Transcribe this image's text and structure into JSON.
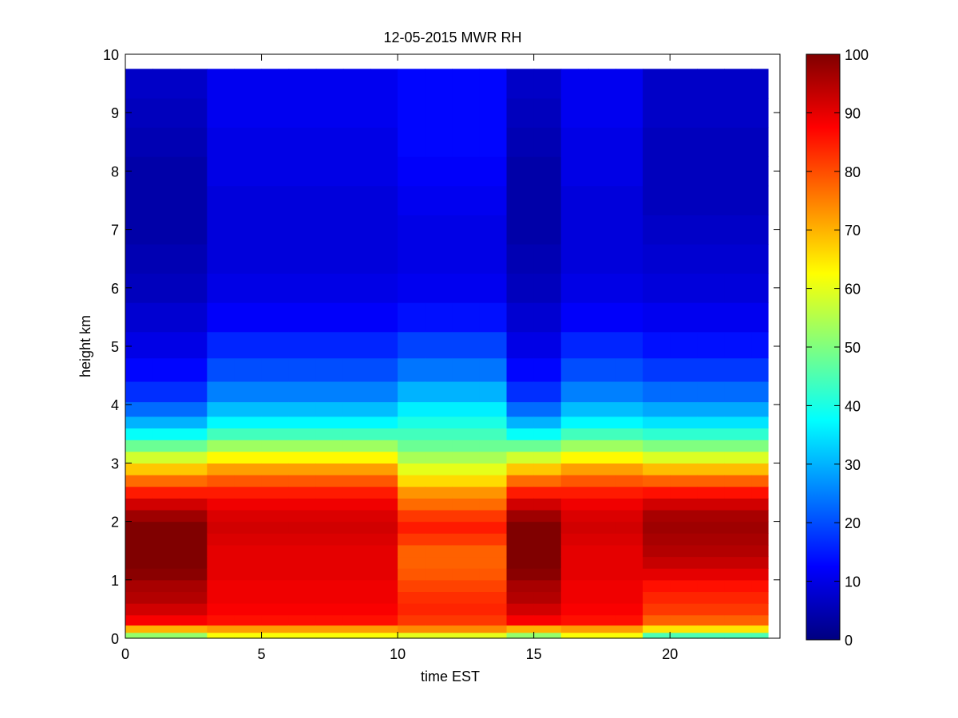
{
  "chart_data": {
    "type": "heatmap",
    "title": "12-05-2015 MWR RH",
    "xlabel": "time EST",
    "ylabel": "height km",
    "xlim": [
      0,
      23.6
    ],
    "ylim": [
      0,
      10
    ],
    "x_ticks": [
      0,
      5,
      10,
      15,
      20
    ],
    "y_ticks": [
      0,
      1,
      2,
      3,
      4,
      5,
      6,
      7,
      8,
      9,
      10
    ],
    "colorbar": {
      "min": 0,
      "max": 100,
      "ticks": [
        0,
        10,
        20,
        30,
        40,
        50,
        60,
        70,
        80,
        90,
        100
      ],
      "colormap": "jet"
    },
    "grid": false,
    "x": [
      0,
      1,
      2,
      3,
      4,
      5,
      6,
      7,
      8,
      9,
      10,
      11,
      12,
      13,
      14,
      15,
      16,
      17,
      18,
      19,
      20,
      21,
      22,
      23
    ],
    "y": [
      0.05,
      0.15,
      0.3,
      0.5,
      0.7,
      0.9,
      1.1,
      1.3,
      1.5,
      1.7,
      1.9,
      2.1,
      2.3,
      2.5,
      2.7,
      2.9,
      3.1,
      3.3,
      3.5,
      3.7,
      3.9,
      4.2,
      4.6,
      5.0,
      5.5,
      6.0,
      6.5,
      7.0,
      7.5,
      8.0,
      8.5,
      9.0,
      9.5
    ],
    "values_note": "RH % estimated from colors",
    "profiles": {
      "night_early": [
        52,
        70,
        88,
        92,
        95,
        96,
        99,
        100,
        100,
        100,
        100,
        97,
        92,
        85,
        77,
        68,
        58,
        48,
        38,
        30,
        23,
        17,
        13,
        10,
        8,
        6,
        5,
        4,
        4,
        4,
        5,
        6,
        7
      ],
      "midday_dry": [
        62,
        72,
        86,
        88,
        89,
        89,
        90,
        90,
        90,
        91,
        92,
        91,
        89,
        85,
        79,
        72,
        63,
        53,
        44,
        37,
        31,
        25,
        20,
        16,
        12,
        10,
        9,
        9,
        9,
        10,
        10,
        11,
        11
      ],
      "midday_clear": [
        60,
        74,
        82,
        84,
        83,
        81,
        79,
        78,
        78,
        82,
        85,
        82,
        77,
        73,
        66,
        60,
        54,
        48,
        44,
        40,
        36,
        30,
        24,
        19,
        14,
        11,
        10,
        10,
        11,
        12,
        13,
        13,
        13
      ],
      "afternoon": [
        45,
        65,
        78,
        82,
        84,
        86,
        90,
        93,
        95,
        96,
        97,
        96,
        92,
        86,
        78,
        69,
        59,
        50,
        42,
        35,
        29,
        23,
        18,
        14,
        11,
        9,
        8,
        7,
        6,
        6,
        6,
        7,
        7
      ]
    },
    "time_profile_index": [
      0,
      0,
      0,
      1,
      1,
      1,
      1,
      1,
      1,
      1,
      2,
      2,
      2,
      2,
      0,
      0,
      1,
      1,
      1,
      3,
      3,
      3,
      3,
      3
    ]
  }
}
